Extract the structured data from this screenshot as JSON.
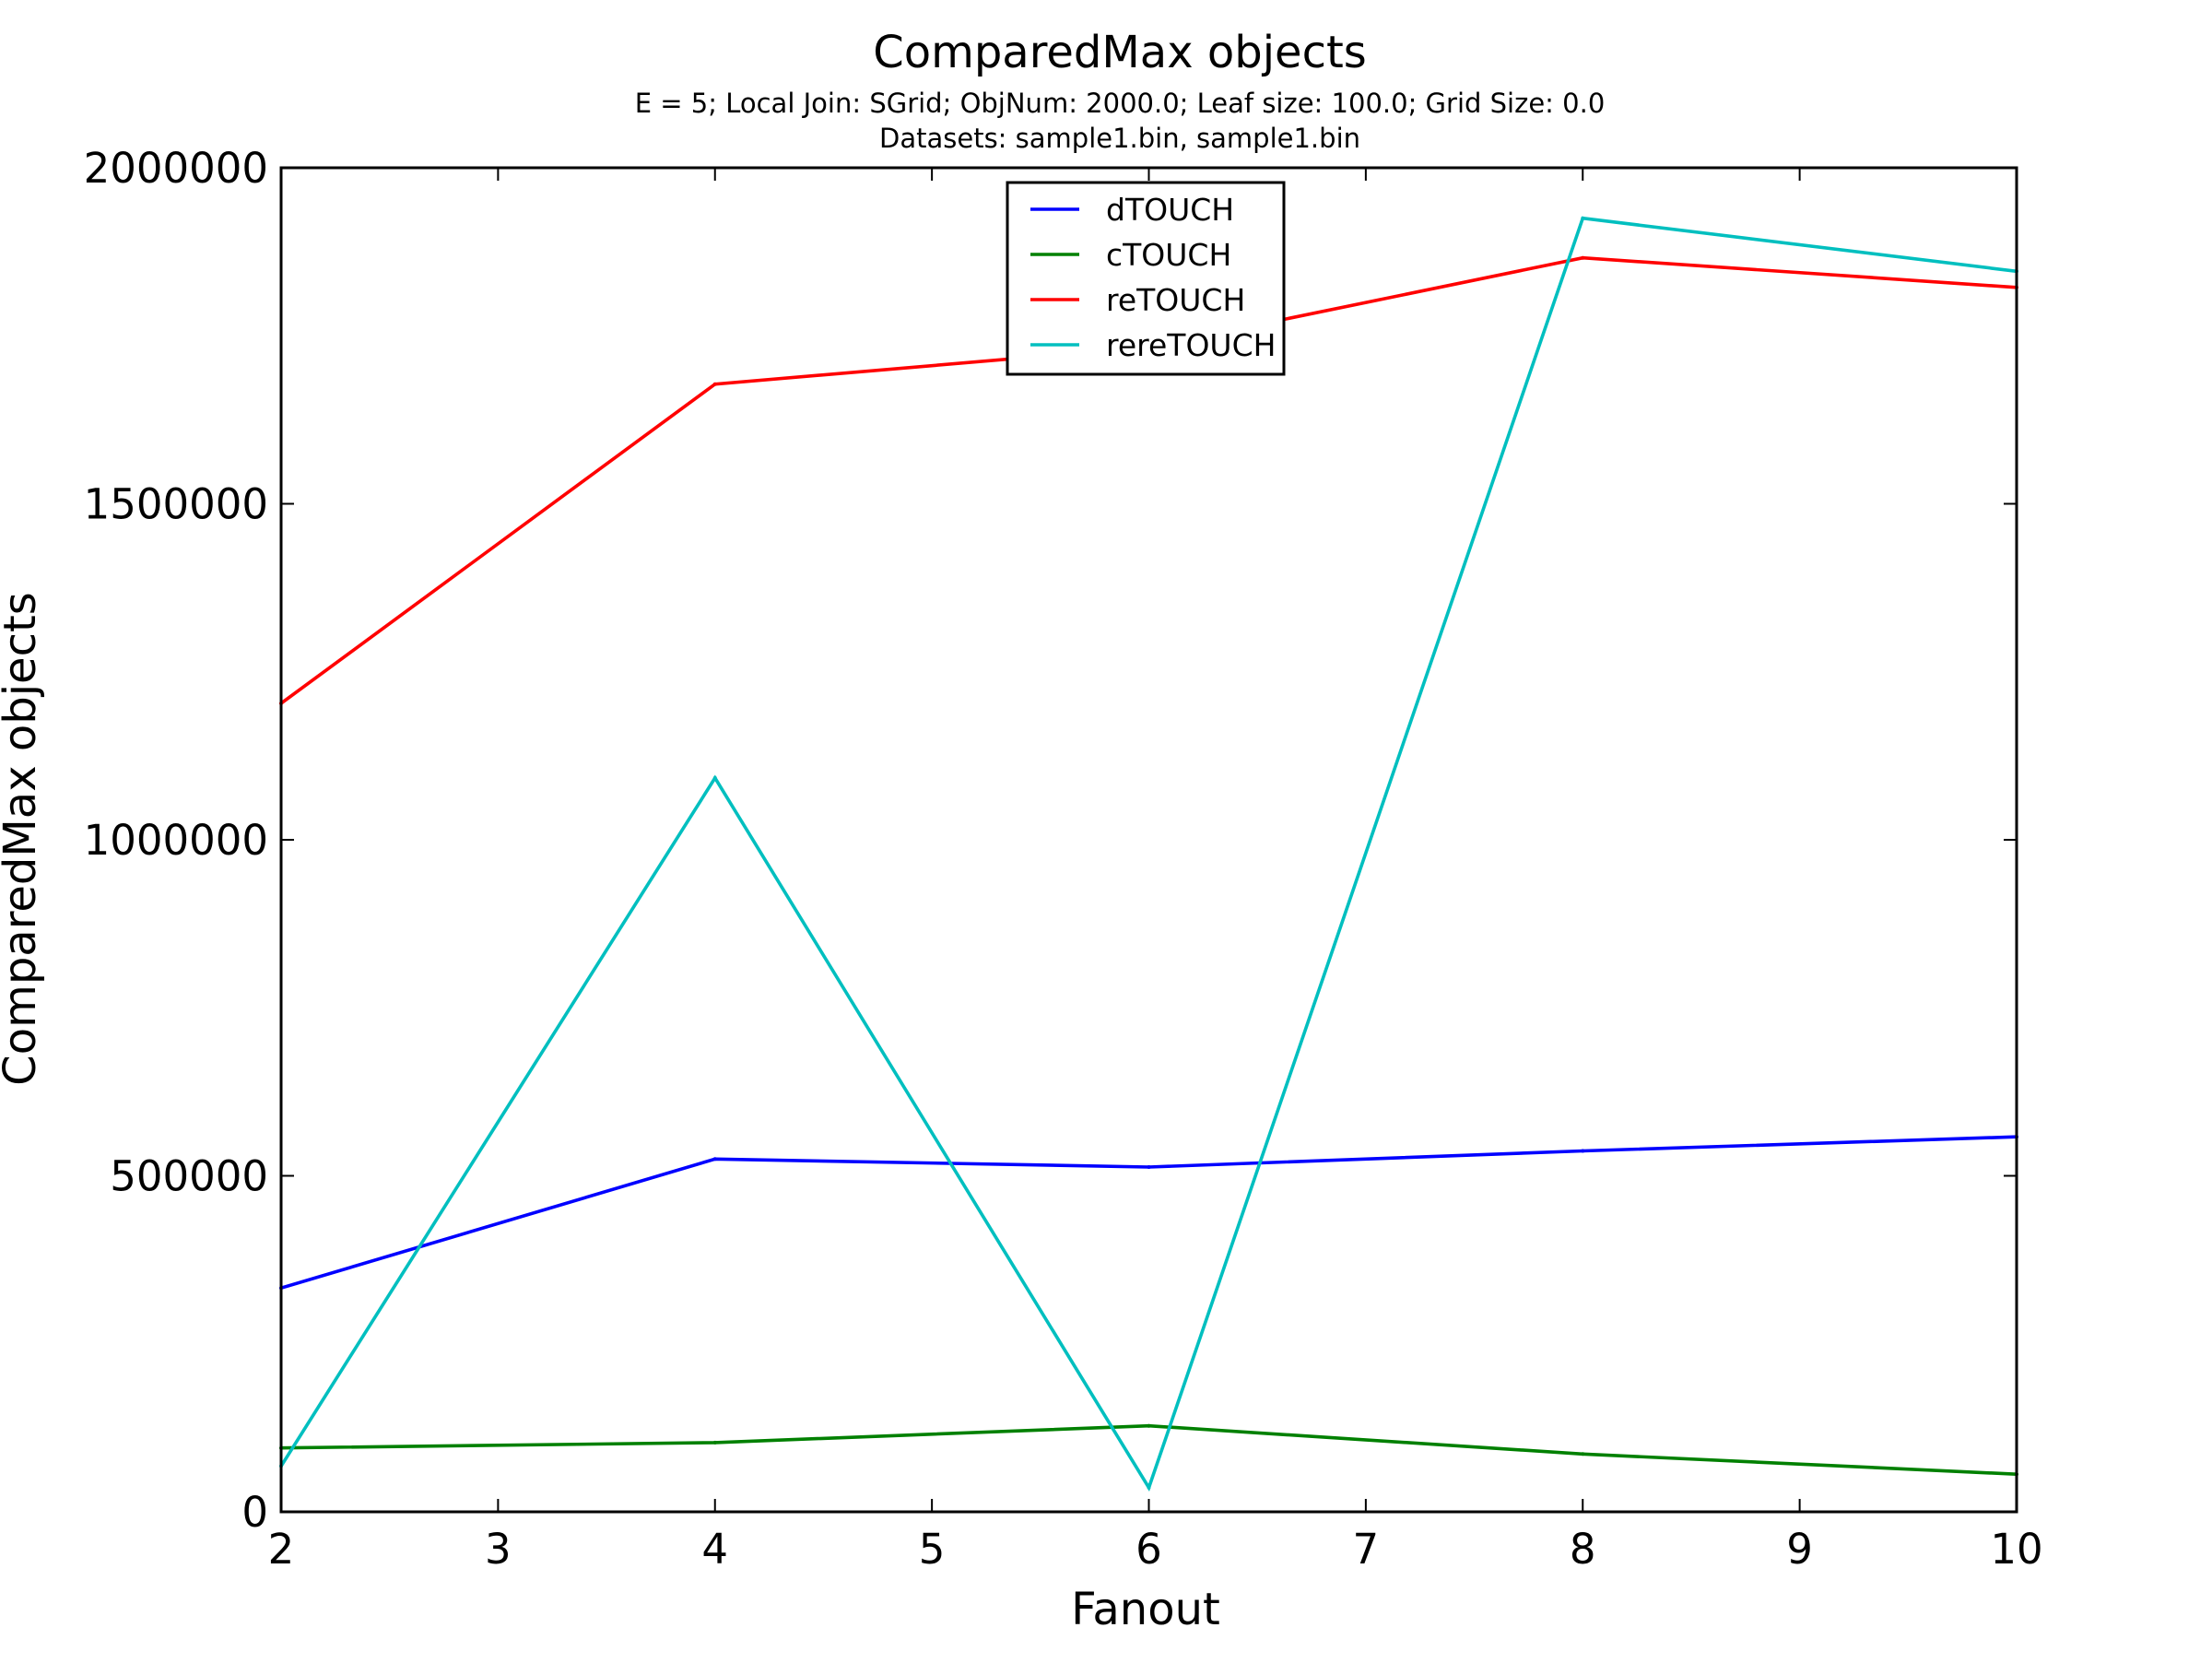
{
  "chart_data": {
    "type": "line",
    "title": "ComparedMax objects",
    "subtitle_lines": [
      "E = 5; Local Join: SGrid; ObjNum: 2000.0; Leaf size: 100.0; Grid Size: 0.0",
      "Datasets: sample1.bin, sample1.bin"
    ],
    "xlabel": "Fanout",
    "ylabel": "ComparedMax objects",
    "xlim": [
      2,
      10
    ],
    "ylim": [
      0,
      2000000
    ],
    "x_ticks": [
      2,
      3,
      4,
      5,
      6,
      7,
      8,
      9,
      10
    ],
    "y_ticks": [
      0,
      500000,
      1000000,
      1500000,
      2000000
    ],
    "x_tick_labels": [
      "2",
      "3",
      "4",
      "5",
      "6",
      "7",
      "8",
      "9",
      "10"
    ],
    "y_tick_labels": [
      "0",
      "500000",
      "1000000",
      "1500000",
      "2000000"
    ],
    "grid": false,
    "legend_position": "top-center",
    "x": [
      2,
      4,
      6,
      8,
      10
    ],
    "series": [
      {
        "name": "dTOUCH",
        "color": "#0000ff",
        "values": [
          333000,
          525000,
          513000,
          537000,
          558000
        ]
      },
      {
        "name": "cTOUCH",
        "color": "#008000",
        "values": [
          95000,
          103000,
          128000,
          86000,
          56000
        ]
      },
      {
        "name": "reTOUCH",
        "color": "#ff0000",
        "values": [
          1203000,
          1678000,
          1733000,
          1866000,
          1822000
        ]
      },
      {
        "name": "rereTOUCH",
        "color": "#00bfbf",
        "values": [
          68000,
          1092000,
          36000,
          1925000,
          1846000
        ]
      }
    ]
  }
}
